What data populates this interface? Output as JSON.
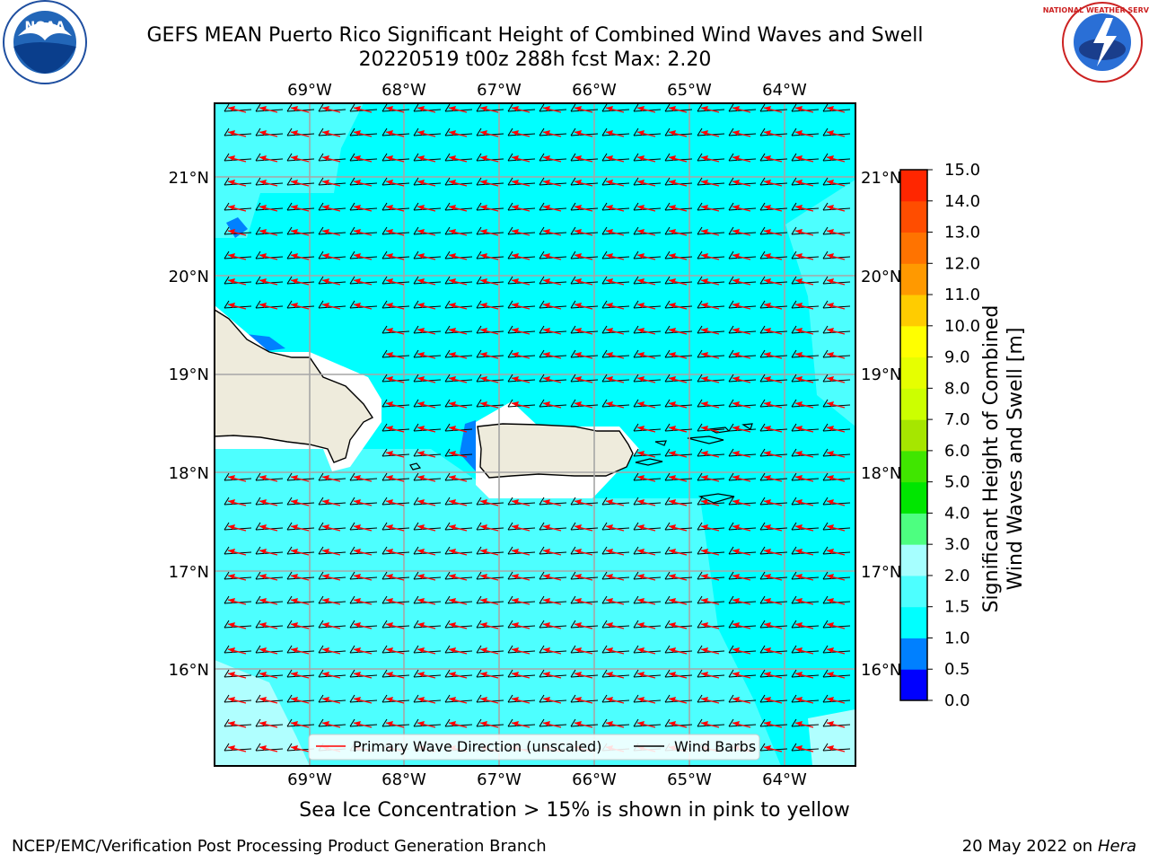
{
  "header": {
    "title_line1": "GEFS MEAN Puerto Rico Significant Height of Combined Wind Waves and Swell",
    "title_line2": "20220519 t00z 288h fcst   Max: 2.20"
  },
  "logos": {
    "noaa_text": "NOAA",
    "nws_text": "NATIONAL WEATHER SERVICE"
  },
  "map": {
    "lon_labels": [
      "69°W",
      "68°W",
      "67°W",
      "66°W",
      "65°W",
      "64°W"
    ],
    "lat_labels": [
      "21°N",
      "20°N",
      "19°N",
      "18°N",
      "17°N",
      "16°N"
    ],
    "legend": {
      "wave_direction": "Primary Wave Direction (unscaled)",
      "wind_barbs": "Wind Barbs"
    },
    "colors": {
      "ocean_main": "#00ffff",
      "ocean_light": "#4dffff",
      "ocean_lighter": "#b0ffff",
      "land": "#eeebdc",
      "arrow": "#ff0000",
      "barb": "#000000"
    }
  },
  "colorbar": {
    "title": "Significant Height of Combined Wind Waves and Swell [m]",
    "title_line1": "Significant Height of Combined",
    "title_line2": "Wind Waves and Swell [m]",
    "ticks": [
      "0.0",
      "0.5",
      "1.0",
      "1.5",
      "2.0",
      "3.0",
      "4.0",
      "5.0",
      "6.0",
      "7.0",
      "8.0",
      "9.0",
      "10.0",
      "11.0",
      "12.0",
      "13.0",
      "14.0",
      "15.0"
    ],
    "colors": [
      "#0000ff",
      "#0080ff",
      "#00ffff",
      "#4dffff",
      "#a6ffff",
      "#4dff80",
      "#00e600",
      "#40e600",
      "#a6e600",
      "#ccff00",
      "#e6ff00",
      "#ffff00",
      "#ffcc00",
      "#ff9900",
      "#ff7300",
      "#ff4d00",
      "#ff2600"
    ]
  },
  "notes": {
    "sea_ice": "Sea Ice Concentration > 15% is shown in pink to yellow"
  },
  "footer": {
    "branch": "NCEP/EMC/Verification Post Processing Product Generation Branch",
    "date": "20 May 2022 on",
    "machine": "Hera"
  }
}
